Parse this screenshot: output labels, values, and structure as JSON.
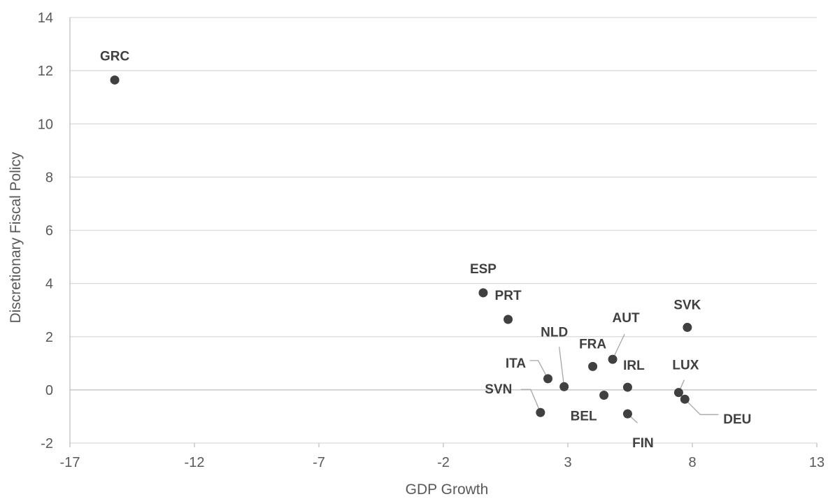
{
  "chart_data": {
    "type": "scatter",
    "title": "",
    "xlabel": "GDP Growth",
    "ylabel": "Discretionary Fiscal Policy",
    "xlim": [
      -17,
      13
    ],
    "ylim": [
      -2,
      14
    ],
    "xticks": [
      -17,
      -12,
      -7,
      -2,
      3,
      8,
      13
    ],
    "yticks": [
      -2,
      0,
      2,
      4,
      6,
      8,
      10,
      12,
      14
    ],
    "grid": "horizontal",
    "legend": "none",
    "marker_color": "#404040",
    "points": [
      {
        "label": "GRC",
        "x": -15.2,
        "y": 11.65
      },
      {
        "label": "ESP",
        "x": -0.4,
        "y": 3.65
      },
      {
        "label": "PRT",
        "x": 0.6,
        "y": 2.65
      },
      {
        "label": "SVK",
        "x": 7.8,
        "y": 2.35
      },
      {
        "label": "AUT",
        "x": 4.8,
        "y": 1.15
      },
      {
        "label": "FRA",
        "x": 4.0,
        "y": 0.88
      },
      {
        "label": "ITA",
        "x": 2.2,
        "y": 0.42
      },
      {
        "label": "NLD",
        "x": 2.85,
        "y": 0.12
      },
      {
        "label": "IRL",
        "x": 5.4,
        "y": 0.1
      },
      {
        "label": "LUX",
        "x": 7.45,
        "y": -0.1
      },
      {
        "label": "BEL",
        "x": 4.45,
        "y": -0.2
      },
      {
        "label": "DEU",
        "x": 7.7,
        "y": -0.35
      },
      {
        "label": "SVN",
        "x": 1.9,
        "y": -0.85
      },
      {
        "label": "FIN",
        "x": 5.4,
        "y": -0.9
      }
    ]
  }
}
